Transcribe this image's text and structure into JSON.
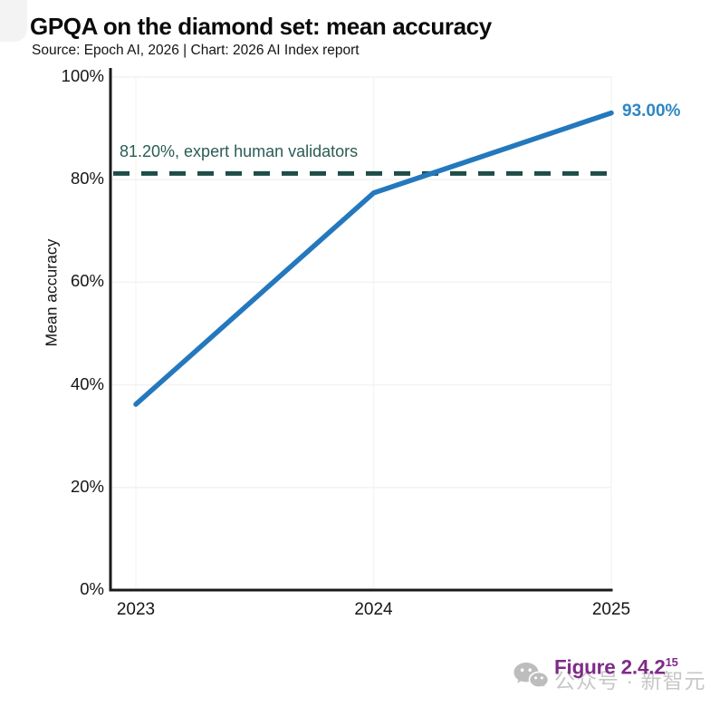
{
  "page": {
    "title": "GPQA on the diamond set: mean accuracy",
    "subtitle": "Source: Epoch AI, 2026 | Chart: 2026 AI Index report"
  },
  "chart_data": {
    "type": "line",
    "title": "GPQA on the diamond set: mean accuracy",
    "source": "Source: Epoch AI, 2026 | Chart: 2026 AI Index report",
    "x": [
      2023,
      2024,
      2025
    ],
    "xtick_labels": [
      "2023",
      "2024",
      "2025"
    ],
    "series": [
      {
        "name": "Mean accuracy",
        "values": [
          36.2,
          77.4,
          93.0
        ],
        "color": "#2478bd"
      }
    ],
    "end_label": "93.00%",
    "reference_line": {
      "value": 81.2,
      "label": "81.20%, expert human validators",
      "color": "#1d4d46",
      "style": "dashed"
    },
    "xlabel": "",
    "ylabel": "Mean accuracy",
    "ylim": [
      0,
      100
    ],
    "yticks": [
      0,
      20,
      40,
      60,
      80,
      100
    ],
    "ytick_labels": [
      "0%",
      "20%",
      "40%",
      "60%",
      "80%",
      "100%"
    ],
    "grid": "faint",
    "legend_position": "none"
  },
  "footer": {
    "figure_label": "Figure 2.4.2",
    "figure_superscript": "15",
    "watermark_icon": "wechat-icon",
    "watermark_text": "公众号 · 新智元"
  },
  "colors": {
    "line": "#2478bd",
    "end_label_text": "#2e86c4",
    "reference_line": "#1d4d46",
    "reference_text": "#2a5d54",
    "axis": "#1a1a1a",
    "gridline": "#f3f2f1",
    "figure_label": "#7e2b87",
    "watermark": "#c7c7c7"
  }
}
